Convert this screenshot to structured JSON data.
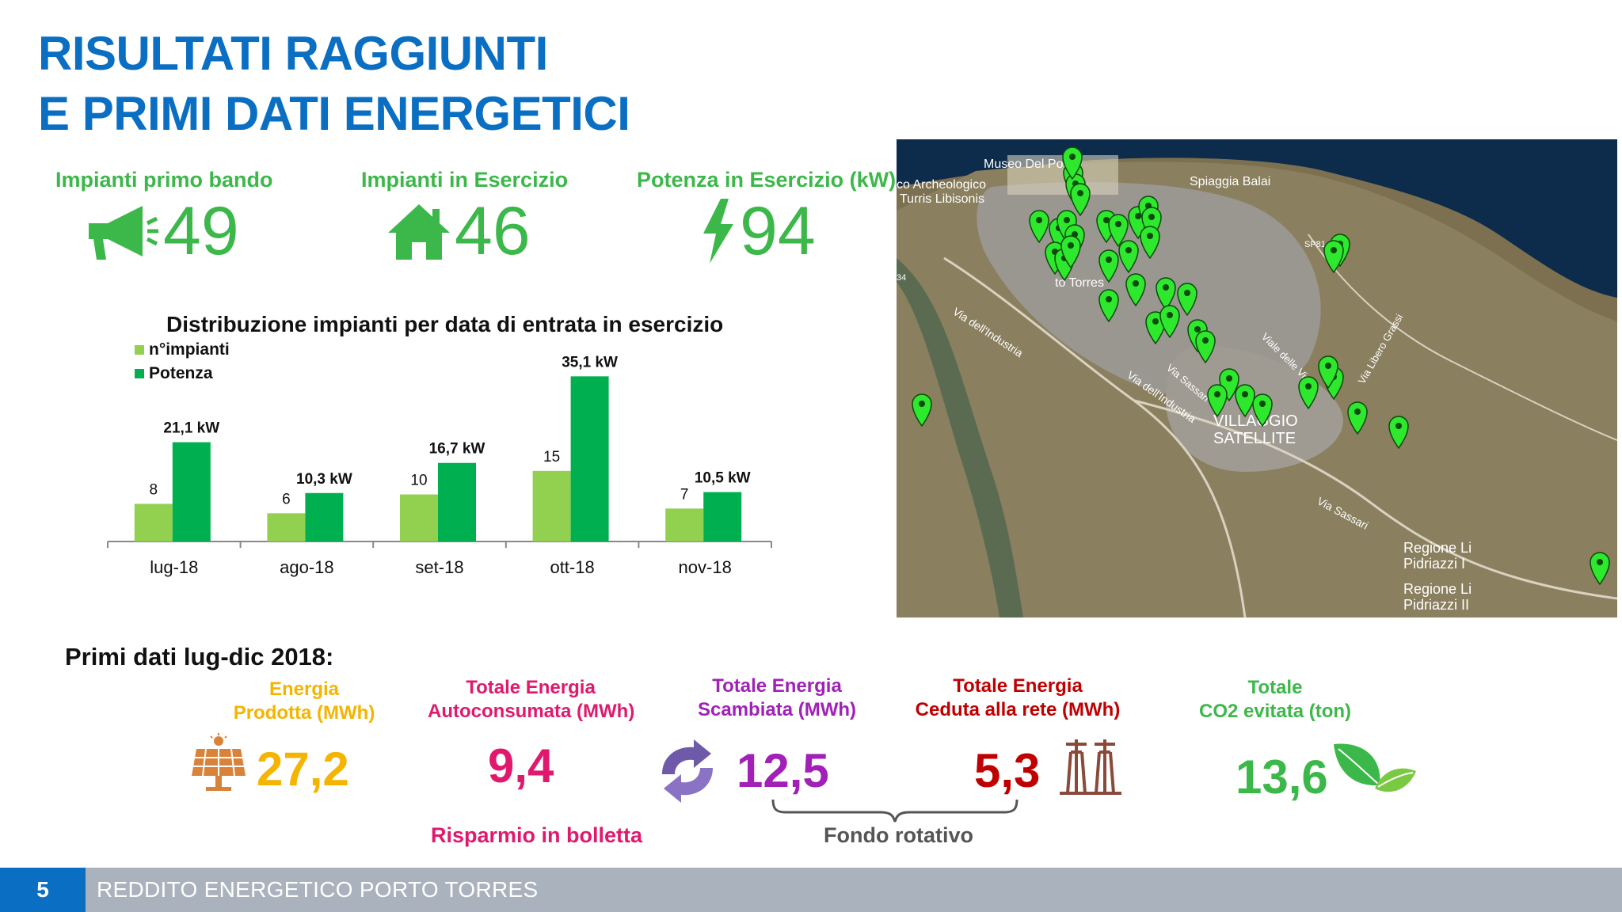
{
  "title": {
    "line1": "RISULTATI RAGGIUNTI",
    "line2": "E PRIMI DATI ENERGETICI"
  },
  "kpis": [
    {
      "label": "Impianti primo bando",
      "value": "49",
      "icon": "megaphone-icon"
    },
    {
      "label": "Impianti in Esercizio",
      "value": "46",
      "icon": "house-icon"
    },
    {
      "label": "Potenza in Esercizio (kW)",
      "value": "94",
      "icon": "lightning-icon"
    }
  ],
  "colors": {
    "brand_blue": "#0a6fc2",
    "kpi_green": "#3cb84a",
    "bar_light": "#92d050",
    "bar_dark": "#00b050",
    "footer_gray": "#aab2bd"
  },
  "chart_data": {
    "type": "bar",
    "title": "Distribuzione impianti per data di entrata in esercizio",
    "categories": [
      "lug-18",
      "ago-18",
      "set-18",
      "ott-18",
      "nov-18"
    ],
    "series": [
      {
        "name": "n°impianti",
        "values": [
          8,
          6,
          10,
          15,
          7
        ],
        "labels": [
          "8",
          "6",
          "10",
          "15",
          "7"
        ],
        "color": "#92d050"
      },
      {
        "name": "Potenza",
        "values": [
          21.1,
          10.3,
          16.7,
          35.1,
          10.5
        ],
        "labels": [
          "21,1 kW",
          "10,3 kW",
          "16,7 kW",
          "35,1 kW",
          "10,5 kW"
        ],
        "color": "#00b050"
      }
    ],
    "legend": "top-left",
    "grid": false
  },
  "map": {
    "labels": [
      "Museo Del Porto",
      "co Archeologico",
      "Turris Libisonis",
      "Spiaggia Balai",
      "SP81",
      "to Torres",
      "Via dell'Industria",
      "Via dell'Industria",
      "Via Sassari",
      "Viale delle Vigne",
      "Via Libero Grassi",
      "VILLAGGIO",
      "SATELLITE",
      "Via Sassari",
      "Regione Li",
      "Pidriazzi I",
      "Regione Li",
      "Pidriazzi II",
      "34"
    ]
  },
  "primi_dati": {
    "title": "Primi dati lug-dic 2018:",
    "metrics": [
      {
        "label1": "Energia",
        "label2": "Prodotta (MWh)",
        "value": "27,2",
        "color": "#f5b400",
        "icon": "solar-panel-icon"
      },
      {
        "label1": "Totale Energia",
        "label2": "Autoconsumata (MWh)",
        "value": "9,4",
        "color": "#e0196e"
      },
      {
        "label1": "Totale Energia",
        "label2": "Scambiata (MWh)",
        "value": "12,5",
        "color": "#a020b8",
        "icon": "exchange-arrows-icon"
      },
      {
        "label1": "Totale Energia",
        "label2": "Ceduta alla rete (MWh)",
        "value": "5,3",
        "color": "#c00000",
        "icon": "power-pylon-icon"
      },
      {
        "label1": "Totale",
        "label2": "CO2 evitata (ton)",
        "value": "13,6",
        "color": "#3cb84a",
        "icon": "leaf-icon"
      }
    ],
    "risparmio": "Risparmio in bolletta",
    "fondo": "Fondo rotativo"
  },
  "footer": {
    "page": "5",
    "text": "REDDITO ENERGETICO PORTO TORRES"
  }
}
